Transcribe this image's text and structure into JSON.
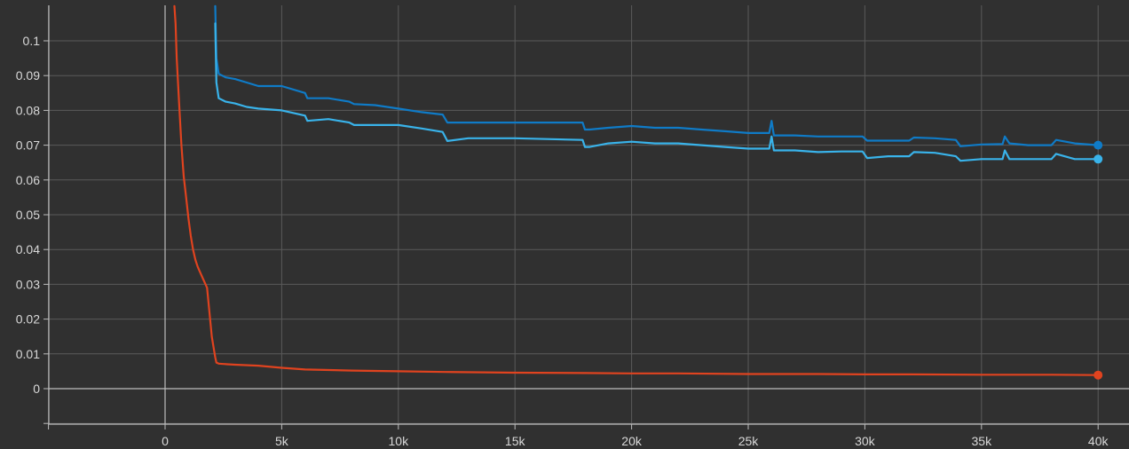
{
  "chart_data": {
    "type": "line",
    "title": "",
    "xlabel": "",
    "ylabel": "",
    "xlim": [
      -5000,
      41000
    ],
    "ylim": [
      -0.011,
      0.11
    ],
    "grid": true,
    "x_ticks": [
      {
        "value": 0,
        "label": "0"
      },
      {
        "value": 5000,
        "label": "5k"
      },
      {
        "value": 10000,
        "label": "10k"
      },
      {
        "value": 15000,
        "label": "15k"
      },
      {
        "value": 20000,
        "label": "20k"
      },
      {
        "value": 25000,
        "label": "25k"
      },
      {
        "value": 30000,
        "label": "30k"
      },
      {
        "value": 35000,
        "label": "35k"
      },
      {
        "value": 40000,
        "label": "40k"
      }
    ],
    "y_ticks": [
      {
        "value": 0,
        "label": "0"
      },
      {
        "value": 0.01,
        "label": "0.01"
      },
      {
        "value": 0.02,
        "label": "0.02"
      },
      {
        "value": 0.03,
        "label": "0.03"
      },
      {
        "value": 0.04,
        "label": "0.04"
      },
      {
        "value": 0.05,
        "label": "0.05"
      },
      {
        "value": 0.06,
        "label": "0.06"
      },
      {
        "value": 0.07,
        "label": "0.07"
      },
      {
        "value": 0.08,
        "label": "0.08"
      },
      {
        "value": 0.09,
        "label": "0.09"
      },
      {
        "value": 0.1,
        "label": "0.1"
      }
    ],
    "series": [
      {
        "color": "#0f7bc7",
        "x": [
          2150,
          2200,
          2300,
          2600,
          3000,
          3500,
          4000,
          5000,
          6000,
          6100,
          7000,
          7900,
          8100,
          9000,
          10000,
          11000,
          11900,
          12100,
          13000,
          15000,
          17900,
          18000,
          18200,
          19000,
          20000,
          21000,
          22000,
          23000,
          24000,
          25000,
          25900,
          26000,
          26100,
          27000,
          28000,
          29000,
          29900,
          30100,
          31000,
          31900,
          32100,
          33000,
          33900,
          34100,
          35000,
          35900,
          36000,
          36200,
          37000,
          38000,
          38200,
          39000,
          40000
        ],
        "y": [
          0.11,
          0.095,
          0.0905,
          0.0895,
          0.089,
          0.088,
          0.087,
          0.087,
          0.085,
          0.0835,
          0.0835,
          0.0825,
          0.0818,
          0.0815,
          0.0805,
          0.0795,
          0.0788,
          0.0765,
          0.0765,
          0.0765,
          0.0765,
          0.0745,
          0.0745,
          0.075,
          0.0755,
          0.075,
          0.075,
          0.0745,
          0.074,
          0.0735,
          0.0735,
          0.077,
          0.0728,
          0.0728,
          0.0725,
          0.0725,
          0.0725,
          0.0713,
          0.0713,
          0.0713,
          0.0722,
          0.072,
          0.0715,
          0.0697,
          0.0702,
          0.0703,
          0.0725,
          0.0705,
          0.07,
          0.07,
          0.0715,
          0.0705,
          0.07
        ]
      },
      {
        "color": "#39b3ea",
        "x": [
          2150,
          2200,
          2300,
          2600,
          3000,
          3500,
          4000,
          5000,
          6000,
          6100,
          7000,
          7900,
          8100,
          9000,
          10000,
          11000,
          11900,
          12100,
          13000,
          15000,
          17900,
          18000,
          18200,
          19000,
          20000,
          21000,
          22000,
          23000,
          24000,
          25000,
          25900,
          26000,
          26100,
          27000,
          28000,
          29000,
          29900,
          30100,
          31000,
          31900,
          32100,
          33000,
          33900,
          34100,
          35000,
          35900,
          36000,
          36200,
          37000,
          38000,
          38200,
          39000,
          40000
        ],
        "y": [
          0.105,
          0.088,
          0.0835,
          0.0825,
          0.082,
          0.081,
          0.0805,
          0.08,
          0.0785,
          0.077,
          0.0775,
          0.0765,
          0.0758,
          0.0758,
          0.0758,
          0.0748,
          0.0738,
          0.0712,
          0.072,
          0.072,
          0.0715,
          0.0695,
          0.0695,
          0.0705,
          0.071,
          0.0705,
          0.0705,
          0.07,
          0.0695,
          0.069,
          0.069,
          0.0725,
          0.0685,
          0.0685,
          0.068,
          0.0682,
          0.0682,
          0.0663,
          0.0668,
          0.0668,
          0.068,
          0.0678,
          0.0668,
          0.0655,
          0.066,
          0.066,
          0.0685,
          0.066,
          0.066,
          0.066,
          0.0675,
          0.066,
          0.066
        ]
      },
      {
        "color": "#e0431f",
        "x": [
          400,
          450,
          500,
          600,
          700,
          800,
          900,
          1000,
          1100,
          1200,
          1300,
          1400,
          1600,
          1800,
          2000,
          2100,
          2150,
          2200,
          2300,
          2500,
          3000,
          4000,
          5000,
          6000,
          8000,
          10000,
          12000,
          15000,
          18000,
          20000,
          22000,
          25000,
          28000,
          30000,
          32000,
          35000,
          38000,
          40000
        ],
        "y": [
          0.11,
          0.105,
          0.095,
          0.082,
          0.07,
          0.061,
          0.055,
          0.049,
          0.044,
          0.04,
          0.037,
          0.035,
          0.032,
          0.029,
          0.015,
          0.011,
          0.009,
          0.0075,
          0.0072,
          0.0071,
          0.0069,
          0.0066,
          0.006,
          0.0055,
          0.0052,
          0.005,
          0.0048,
          0.0046,
          0.0045,
          0.0044,
          0.0044,
          0.0042,
          0.0042,
          0.0041,
          0.0041,
          0.004,
          0.004,
          0.0039
        ]
      }
    ]
  }
}
